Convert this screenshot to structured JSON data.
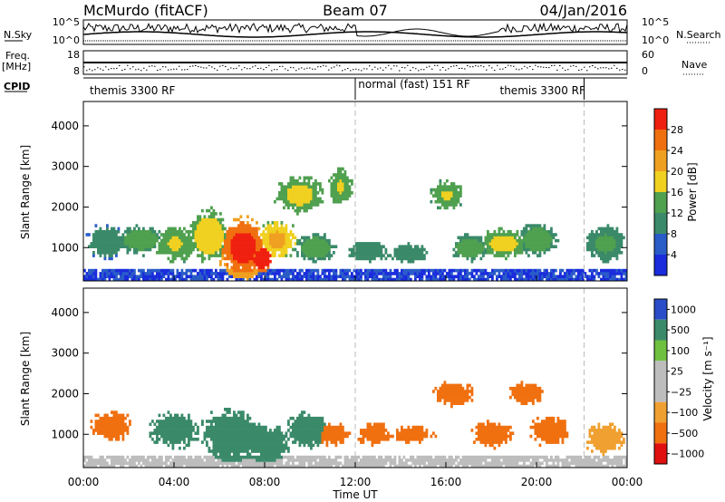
{
  "header": {
    "station": "McMurdo (fitACF)",
    "beam": "Beam 07",
    "date": "04/Jan/2016"
  },
  "noise_panel": {
    "left_label": "N.Sky",
    "left_ticks": [
      "10^5",
      "10^0"
    ],
    "right_label": "N.Search",
    "right_ticks": [
      "10^5",
      "10^0"
    ]
  },
  "freq_panel": {
    "left_label": "Freq.",
    "left_unit": "[MHz]",
    "left_ticks": [
      "18",
      "8"
    ],
    "right_label": "Nave",
    "right_ticks": [
      "60",
      "0"
    ]
  },
  "cpid": {
    "label": "CPID",
    "modes": [
      {
        "name": "themis 3300 RF",
        "start_hr": 0,
        "end_hr": 12
      },
      {
        "name": "normal (fast) 151 RF",
        "start_hr": 12,
        "end_hr": 22.1
      },
      {
        "name": "themis 3300 RF",
        "start_hr": 22.1,
        "end_hr": 24
      }
    ],
    "label_positions_hr": [
      0.2,
      12.05,
      18.3
    ]
  },
  "colors": {
    "power_scale": [
      "#1a2cdc",
      "#2a5cc8",
      "#3a8a6a",
      "#4fa04f",
      "#f0d020",
      "#f0a020",
      "#f07010",
      "#f02010"
    ],
    "velocity_scale": [
      "#e01010",
      "#f07010",
      "#f0a030",
      "#bdbdbd",
      "#bdbdbd",
      "#70c040",
      "#3a8a6a",
      "#2a4cc8"
    ]
  },
  "chart_data": [
    {
      "type": "heatmap",
      "name": "power",
      "ylabel": "Slant Range [km]",
      "ylim": [
        180,
        4600
      ],
      "yticks": [
        1000,
        2000,
        3000,
        4000
      ],
      "xlim": [
        0,
        24
      ],
      "colorbar": {
        "label": "Power [dB]",
        "range": [
          0,
          32
        ],
        "ticks": [
          "4",
          "8",
          "12",
          "16",
          "20",
          "24",
          "28"
        ],
        "tick_values": [
          4,
          8,
          12,
          16,
          20,
          24,
          28
        ]
      },
      "blobs": [
        {
          "t": 1.0,
          "r": 1150,
          "dt": 1.0,
          "dr": 450,
          "v": 9
        },
        {
          "t": 2.5,
          "r": 1200,
          "dt": 1.2,
          "dr": 400,
          "v": 12
        },
        {
          "t": 4.0,
          "r": 1100,
          "dt": 1.0,
          "dr": 500,
          "v": 14
        },
        {
          "t": 5.5,
          "r": 1300,
          "dt": 1.0,
          "dr": 700,
          "v": 16
        },
        {
          "t": 7.0,
          "r": 1000,
          "dt": 1.2,
          "dr": 800,
          "v": 26
        },
        {
          "t": 7.8,
          "r": 750,
          "dt": 0.6,
          "dr": 350,
          "v": 30
        },
        {
          "t": 8.5,
          "r": 1200,
          "dt": 1.0,
          "dr": 500,
          "v": 18
        },
        {
          "t": 9.5,
          "r": 2300,
          "dt": 1.2,
          "dr": 500,
          "v": 15
        },
        {
          "t": 10.2,
          "r": 1000,
          "dt": 1.0,
          "dr": 400,
          "v": 12
        },
        {
          "t": 11.3,
          "r": 2500,
          "dt": 0.6,
          "dr": 500,
          "v": 14
        },
        {
          "t": 12.5,
          "r": 900,
          "dt": 1.0,
          "dr": 300,
          "v": 10
        },
        {
          "t": 14.3,
          "r": 850,
          "dt": 0.9,
          "dr": 250,
          "v": 10
        },
        {
          "t": 16.0,
          "r": 2300,
          "dt": 0.8,
          "dr": 400,
          "v": 14
        },
        {
          "t": 17.0,
          "r": 1000,
          "dt": 1.0,
          "dr": 350,
          "v": 12
        },
        {
          "t": 18.5,
          "r": 1100,
          "dt": 1.2,
          "dr": 400,
          "v": 15
        },
        {
          "t": 20.0,
          "r": 1200,
          "dt": 1.0,
          "dr": 450,
          "v": 12
        },
        {
          "t": 23.0,
          "r": 1100,
          "dt": 1.0,
          "dr": 500,
          "v": 11
        }
      ]
    },
    {
      "type": "heatmap",
      "name": "velocity",
      "ylabel": "Slant Range [km]",
      "ylim": [
        180,
        4600
      ],
      "yticks": [
        1000,
        2000,
        3000,
        4000
      ],
      "xlim": [
        0,
        24
      ],
      "xlabel": "Time UT",
      "xticks": [
        "00:00",
        "04:00",
        "08:00",
        "12:00",
        "16:00",
        "20:00",
        "00:00"
      ],
      "xtick_hours": [
        0,
        4,
        8,
        12,
        16,
        20,
        24
      ],
      "colorbar": {
        "label": "Velocity [m s⁻¹]",
        "ticks": [
          "1000",
          "500",
          "100",
          "25",
          "−25",
          "−100",
          "−500",
          "−1000"
        ],
        "tick_values": [
          1000,
          500,
          100,
          25,
          -25,
          -100,
          -500,
          -1000
        ]
      },
      "blobs": [
        {
          "t": 1.2,
          "r": 1200,
          "dt": 1.0,
          "dr": 400,
          "v": -200
        },
        {
          "t": 4.0,
          "r": 1100,
          "dt": 1.2,
          "dr": 500,
          "v": 200
        },
        {
          "t": 6.5,
          "r": 1000,
          "dt": 1.5,
          "dr": 700,
          "v": 400
        },
        {
          "t": 8.0,
          "r": 800,
          "dt": 1.2,
          "dr": 500,
          "v": 450
        },
        {
          "t": 9.8,
          "r": 1100,
          "dt": 1.0,
          "dr": 500,
          "v": 200
        },
        {
          "t": 11.0,
          "r": 1000,
          "dt": 0.8,
          "dr": 300,
          "v": -150
        },
        {
          "t": 12.8,
          "r": 1000,
          "dt": 0.8,
          "dr": 300,
          "v": -200
        },
        {
          "t": 14.5,
          "r": 1000,
          "dt": 1.0,
          "dr": 250,
          "v": -150
        },
        {
          "t": 16.3,
          "r": 2000,
          "dt": 1.0,
          "dr": 350,
          "v": -200
        },
        {
          "t": 18.0,
          "r": 1000,
          "dt": 1.0,
          "dr": 350,
          "v": -120
        },
        {
          "t": 19.5,
          "r": 2000,
          "dt": 0.8,
          "dr": 300,
          "v": -200
        },
        {
          "t": 20.5,
          "r": 1100,
          "dt": 1.0,
          "dr": 400,
          "v": -100
        },
        {
          "t": 23.0,
          "r": 900,
          "dt": 1.0,
          "dr": 400,
          "v": -80
        }
      ]
    }
  ]
}
